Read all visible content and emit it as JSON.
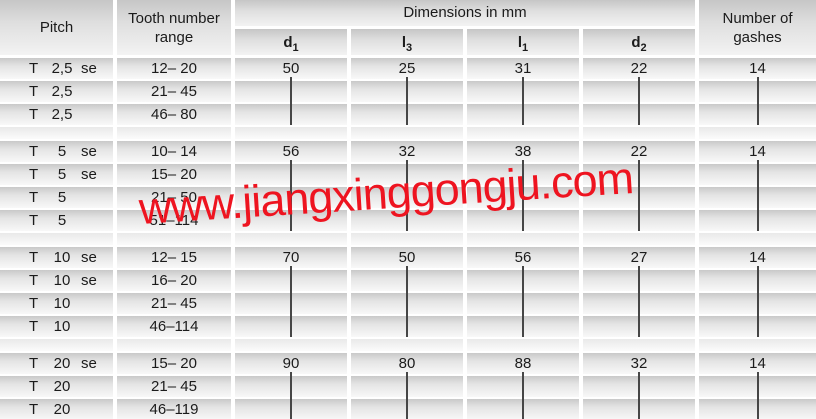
{
  "watermark": {
    "text": "www.jiangxinggongju.com",
    "color": "#ee1420"
  },
  "header": {
    "pitch": "Pitch",
    "tooth_line1": "Tooth number",
    "tooth_line2": "range",
    "dimensions_group": "Dimensions in mm",
    "dims": [
      {
        "base": "d",
        "sub": "1"
      },
      {
        "base": "l",
        "sub": "3"
      },
      {
        "base": "l",
        "sub": "1"
      },
      {
        "base": "d",
        "sub": "2"
      }
    ],
    "gashes_line1": "Number of",
    "gashes_line2": "gashes"
  },
  "sections": [
    {
      "rows": [
        {
          "t": "T",
          "val": "2,5",
          "se": "se",
          "range": "12– 20",
          "d1": "50",
          "l3": "25",
          "l1": "31",
          "d2": "22",
          "gashes": "14",
          "ditto": false
        },
        {
          "t": "T",
          "val": "2,5",
          "se": "",
          "range": "21– 45",
          "ditto": true
        },
        {
          "t": "T",
          "val": "2,5",
          "se": "",
          "range": "46– 80",
          "ditto": true
        }
      ]
    },
    {
      "rows": [
        {
          "t": "T",
          "val": "5",
          "se": "se",
          "range": "10– 14",
          "d1": "56",
          "l3": "32",
          "l1": "38",
          "d2": "22",
          "gashes": "14",
          "ditto": false
        },
        {
          "t": "T",
          "val": "5",
          "se": "se",
          "range": "15– 20",
          "ditto": true
        },
        {
          "t": "T",
          "val": "5",
          "se": "",
          "range": "21– 50",
          "ditto": true
        },
        {
          "t": "T",
          "val": "5",
          "se": "",
          "range": "51–114",
          "ditto": true
        }
      ]
    },
    {
      "rows": [
        {
          "t": "T",
          "val": "10",
          "se": "se",
          "range": "12– 15",
          "d1": "70",
          "l3": "50",
          "l1": "56",
          "d2": "27",
          "gashes": "14",
          "ditto": false
        },
        {
          "t": "T",
          "val": "10",
          "se": "se",
          "range": "16– 20",
          "ditto": true
        },
        {
          "t": "T",
          "val": "10",
          "se": "",
          "range": "21– 45",
          "ditto": true
        },
        {
          "t": "T",
          "val": "10",
          "se": "",
          "range": "46–114",
          "ditto": true
        }
      ]
    },
    {
      "rows": [
        {
          "t": "T",
          "val": "20",
          "se": "se",
          "range": "15– 20",
          "d1": "90",
          "l3": "80",
          "l1": "88",
          "d2": "32",
          "gashes": "14",
          "ditto": false
        },
        {
          "t": "T",
          "val": "20",
          "se": "",
          "range": "21– 45",
          "ditto": true
        },
        {
          "t": "T",
          "val": "20",
          "se": "",
          "range": "46–119",
          "ditto": true
        }
      ]
    }
  ]
}
